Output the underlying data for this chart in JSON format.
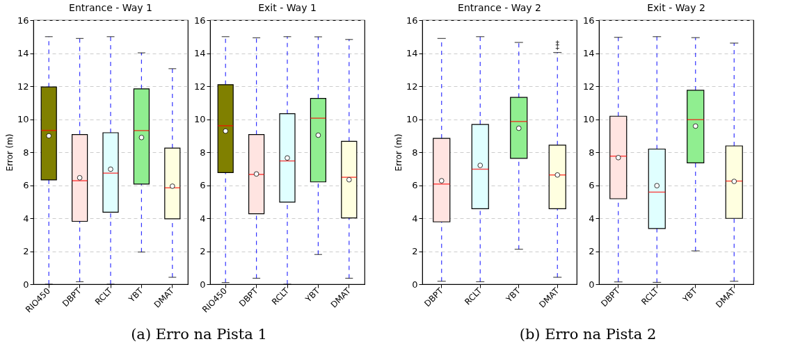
{
  "chart_data": [
    {
      "type": "box",
      "title": "Entrance - Way 1",
      "ylabel": "Error (m)",
      "categories": [
        "RIO450",
        "DBPT",
        "RCLT",
        "YBT",
        "DMAT"
      ],
      "colors": [
        "#808000",
        "#ffe4e1",
        "#e0ffff",
        "#90ee90",
        "#ffffe0"
      ],
      "boxes": [
        {
          "low": 0,
          "q1": 6.32,
          "median": 9.32,
          "q3": 11.95,
          "high": 15.0,
          "mean": 8.99
        },
        {
          "low": 0.15,
          "q1": 3.81,
          "median": 6.27,
          "q3": 9.07,
          "high": 14.89,
          "mean": 6.45
        },
        {
          "low": 0,
          "q1": 4.36,
          "median": 6.73,
          "q3": 9.18,
          "high": 15.0,
          "mean": 6.97
        },
        {
          "low": 1.95,
          "q1": 6.07,
          "median": 9.31,
          "q3": 11.84,
          "high": 14.02,
          "mean": 8.89
        },
        {
          "low": 0.42,
          "q1": 3.96,
          "median": 5.84,
          "q3": 8.25,
          "high": 13.06,
          "mean": 5.94
        }
      ],
      "ylim": [
        0,
        16
      ],
      "yticks": [
        0,
        2,
        4,
        6,
        8,
        10,
        12,
        14,
        16
      ],
      "grid": "y",
      "annotations": [
        "(a) Erro na Pista 1"
      ]
    },
    {
      "type": "box",
      "title": "Exit - Way 1",
      "categories": [
        "RIO450",
        "DBPT",
        "RCLT",
        "YBT",
        "DMAT"
      ],
      "colors": [
        "#808000",
        "#ffe4e1",
        "#e0ffff",
        "#90ee90",
        "#ffffe0"
      ],
      "boxes": [
        {
          "low": 0.1,
          "q1": 6.76,
          "median": 9.6,
          "q3": 12.09,
          "high": 15.0,
          "mean": 9.28
        },
        {
          "low": 0.36,
          "q1": 4.27,
          "median": 6.65,
          "q3": 9.07,
          "high": 14.93,
          "mean": 6.68
        },
        {
          "low": 0,
          "q1": 4.97,
          "median": 7.47,
          "q3": 10.33,
          "high": 15.0,
          "mean": 7.65
        },
        {
          "low": 1.8,
          "q1": 6.2,
          "median": 10.06,
          "q3": 11.26,
          "high": 14.99,
          "mean": 9.03
        },
        {
          "low": 0.36,
          "q1": 4.02,
          "median": 6.48,
          "q3": 8.66,
          "high": 14.83,
          "mean": 6.33
        }
      ],
      "ylim": [
        0,
        16
      ],
      "yticks": [
        0,
        2,
        4,
        6,
        8,
        10,
        12,
        14,
        16
      ],
      "grid": "y"
    },
    {
      "type": "box",
      "title": "Entrance - Way 2",
      "ylabel": "Error (m)",
      "categories": [
        "DBPT",
        "RCLT",
        "YBT",
        "DMAT"
      ],
      "colors": [
        "#ffe4e1",
        "#e0ffff",
        "#90ee90",
        "#ffffe0"
      ],
      "boxes": [
        {
          "low": 0.18,
          "q1": 3.78,
          "median": 6.07,
          "q3": 8.84,
          "high": 14.89,
          "mean": 6.27
        },
        {
          "low": 0.15,
          "q1": 4.57,
          "median": 6.97,
          "q3": 9.68,
          "high": 15.0,
          "mean": 7.2
        },
        {
          "low": 2.12,
          "q1": 7.63,
          "median": 9.86,
          "q3": 11.32,
          "high": 14.65,
          "mean": 9.45
        },
        {
          "low": 0.42,
          "q1": 4.57,
          "median": 6.62,
          "q3": 8.43,
          "high": 14.04,
          "mean": 6.62,
          "outliers": [
            14.29,
            14.5,
            14.67
          ]
        }
      ],
      "ylim": [
        0,
        16
      ],
      "yticks": [
        0,
        2,
        4,
        6,
        8,
        10,
        12,
        14,
        16
      ],
      "grid": "y"
    },
    {
      "type": "box",
      "title": "Exit - Way 2",
      "categories": [
        "DBPT",
        "RCLT",
        "YBT",
        "DMAT"
      ],
      "colors": [
        "#ffe4e1",
        "#e0ffff",
        "#90ee90",
        "#ffffe0"
      ],
      "boxes": [
        {
          "low": 0.14,
          "q1": 5.18,
          "median": 7.76,
          "q3": 10.18,
          "high": 14.96,
          "mean": 7.67
        },
        {
          "low": 0.11,
          "q1": 3.37,
          "median": 5.58,
          "q3": 8.19,
          "high": 15.0,
          "mean": 5.97
        },
        {
          "low": 2.02,
          "q1": 7.35,
          "median": 9.97,
          "q3": 11.75,
          "high": 14.94,
          "mean": 9.58
        },
        {
          "low": 0.18,
          "q1": 3.99,
          "median": 6.25,
          "q3": 8.38,
          "high": 14.61,
          "mean": 6.23
        }
      ],
      "ylim": [
        0,
        16
      ],
      "yticks": [
        0,
        2,
        4,
        6,
        8,
        10,
        12,
        14,
        16
      ],
      "grid": "y",
      "annotations": [
        "(b) Erro na Pista 2"
      ]
    }
  ]
}
